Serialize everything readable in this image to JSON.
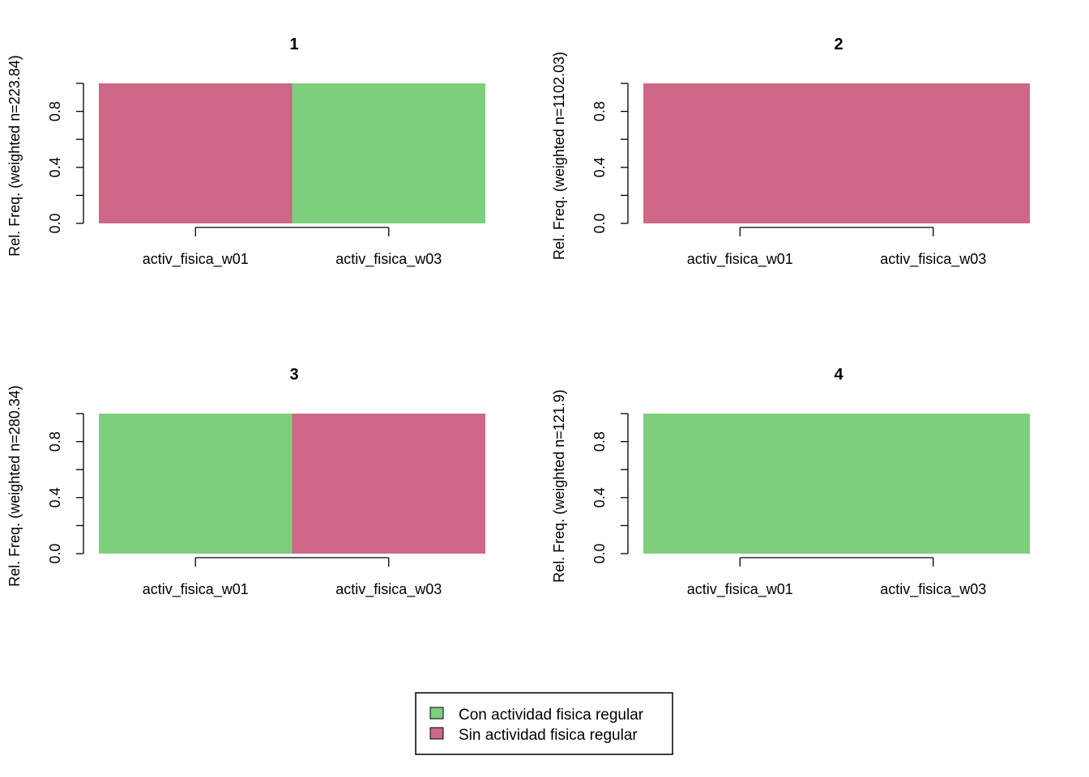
{
  "chart_data": [
    {
      "type": "bar",
      "title": "1",
      "ylabel": "Rel. Freq. (weighted n=223.84)",
      "xlabel": "",
      "categories": [
        "activ_fisica_w01",
        "activ_fisica_w03"
      ],
      "yticks": [
        "0.0",
        "0.4",
        "0.8"
      ],
      "ylim": [
        0,
        1
      ],
      "stacked": true,
      "series": [
        {
          "name": "Con actividad fisica regular",
          "values": [
            0,
            1
          ]
        },
        {
          "name": "Sin actividad fisica regular",
          "values": [
            1,
            0
          ]
        }
      ]
    },
    {
      "type": "bar",
      "title": "2",
      "ylabel": "Rel. Freq. (weighted n=1102.03)",
      "xlabel": "",
      "categories": [
        "activ_fisica_w01",
        "activ_fisica_w03"
      ],
      "yticks": [
        "0.0",
        "0.4",
        "0.8"
      ],
      "ylim": [
        0,
        1
      ],
      "stacked": true,
      "series": [
        {
          "name": "Con actividad fisica regular",
          "values": [
            0,
            0
          ]
        },
        {
          "name": "Sin actividad fisica regular",
          "values": [
            1,
            1
          ]
        }
      ]
    },
    {
      "type": "bar",
      "title": "3",
      "ylabel": "Rel. Freq. (weighted n=280.34)",
      "xlabel": "",
      "categories": [
        "activ_fisica_w01",
        "activ_fisica_w03"
      ],
      "yticks": [
        "0.0",
        "0.4",
        "0.8"
      ],
      "ylim": [
        0,
        1
      ],
      "stacked": true,
      "series": [
        {
          "name": "Con actividad fisica regular",
          "values": [
            1,
            0
          ]
        },
        {
          "name": "Sin actividad fisica regular",
          "values": [
            0,
            1
          ]
        }
      ]
    },
    {
      "type": "bar",
      "title": "4",
      "ylabel": "Rel. Freq. (weighted n=121.9)",
      "xlabel": "",
      "categories": [
        "activ_fisica_w01",
        "activ_fisica_w03"
      ],
      "yticks": [
        "0.0",
        "0.4",
        "0.8"
      ],
      "ylim": [
        0,
        1
      ],
      "stacked": true,
      "series": [
        {
          "name": "Con actividad fisica regular",
          "values": [
            1,
            1
          ]
        },
        {
          "name": "Sin actividad fisica regular",
          "values": [
            0,
            0
          ]
        }
      ]
    }
  ],
  "legend": {
    "placement": "bottom-center",
    "items": [
      {
        "label": "Con actividad fisica regular",
        "color": "#7dce7d"
      },
      {
        "label": "Sin actividad fisica regular",
        "color": "#cd6785"
      }
    ]
  },
  "colors": {
    "con": "#7dce7d",
    "sin": "#cd6785"
  }
}
